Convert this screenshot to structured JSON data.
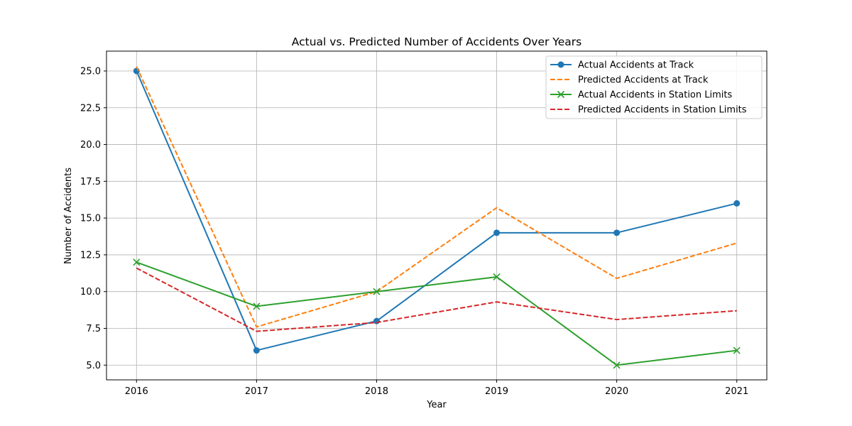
{
  "chart_data": {
    "type": "line",
    "title": "Actual vs. Predicted Number of Accidents Over Years",
    "xlabel": "Year",
    "ylabel": "Number of Accidents",
    "x": [
      2016,
      2017,
      2018,
      2019,
      2020,
      2021
    ],
    "xlim": [
      2015.75,
      2021.25
    ],
    "ylim": [
      4.0,
      26.35
    ],
    "yticks": [
      5.0,
      7.5,
      10.0,
      12.5,
      15.0,
      17.5,
      20.0,
      22.5,
      25.0
    ],
    "ytick_labels": [
      "5.0",
      "7.5",
      "10.0",
      "12.5",
      "15.0",
      "17.5",
      "20.0",
      "22.5",
      "25.0"
    ],
    "xtick_labels": [
      "2016",
      "2017",
      "2018",
      "2019",
      "2020",
      "2021"
    ],
    "grid": true,
    "legend_position": "top-right",
    "series": [
      {
        "name": "Actual Accidents at Track",
        "values": [
          25,
          6,
          8,
          14,
          14,
          16
        ],
        "color": "#1f77b4",
        "linestyle": "solid",
        "marker": "circle"
      },
      {
        "name": "Predicted Accidents at Track",
        "values": [
          25.3,
          7.6,
          10.0,
          15.7,
          10.9,
          13.3
        ],
        "color": "#ff7f0e",
        "linestyle": "dashed",
        "marker": "none"
      },
      {
        "name": "Actual Accidents in Station Limits",
        "values": [
          12,
          9,
          10,
          11,
          5,
          6
        ],
        "color": "#2ca02c",
        "linestyle": "solid",
        "marker": "x"
      },
      {
        "name": "Predicted Accidents in Station Limits",
        "values": [
          11.6,
          7.3,
          7.9,
          9.3,
          8.1,
          8.7
        ],
        "color": "#d62728",
        "linestyle": "dashed",
        "marker": "none"
      }
    ]
  }
}
